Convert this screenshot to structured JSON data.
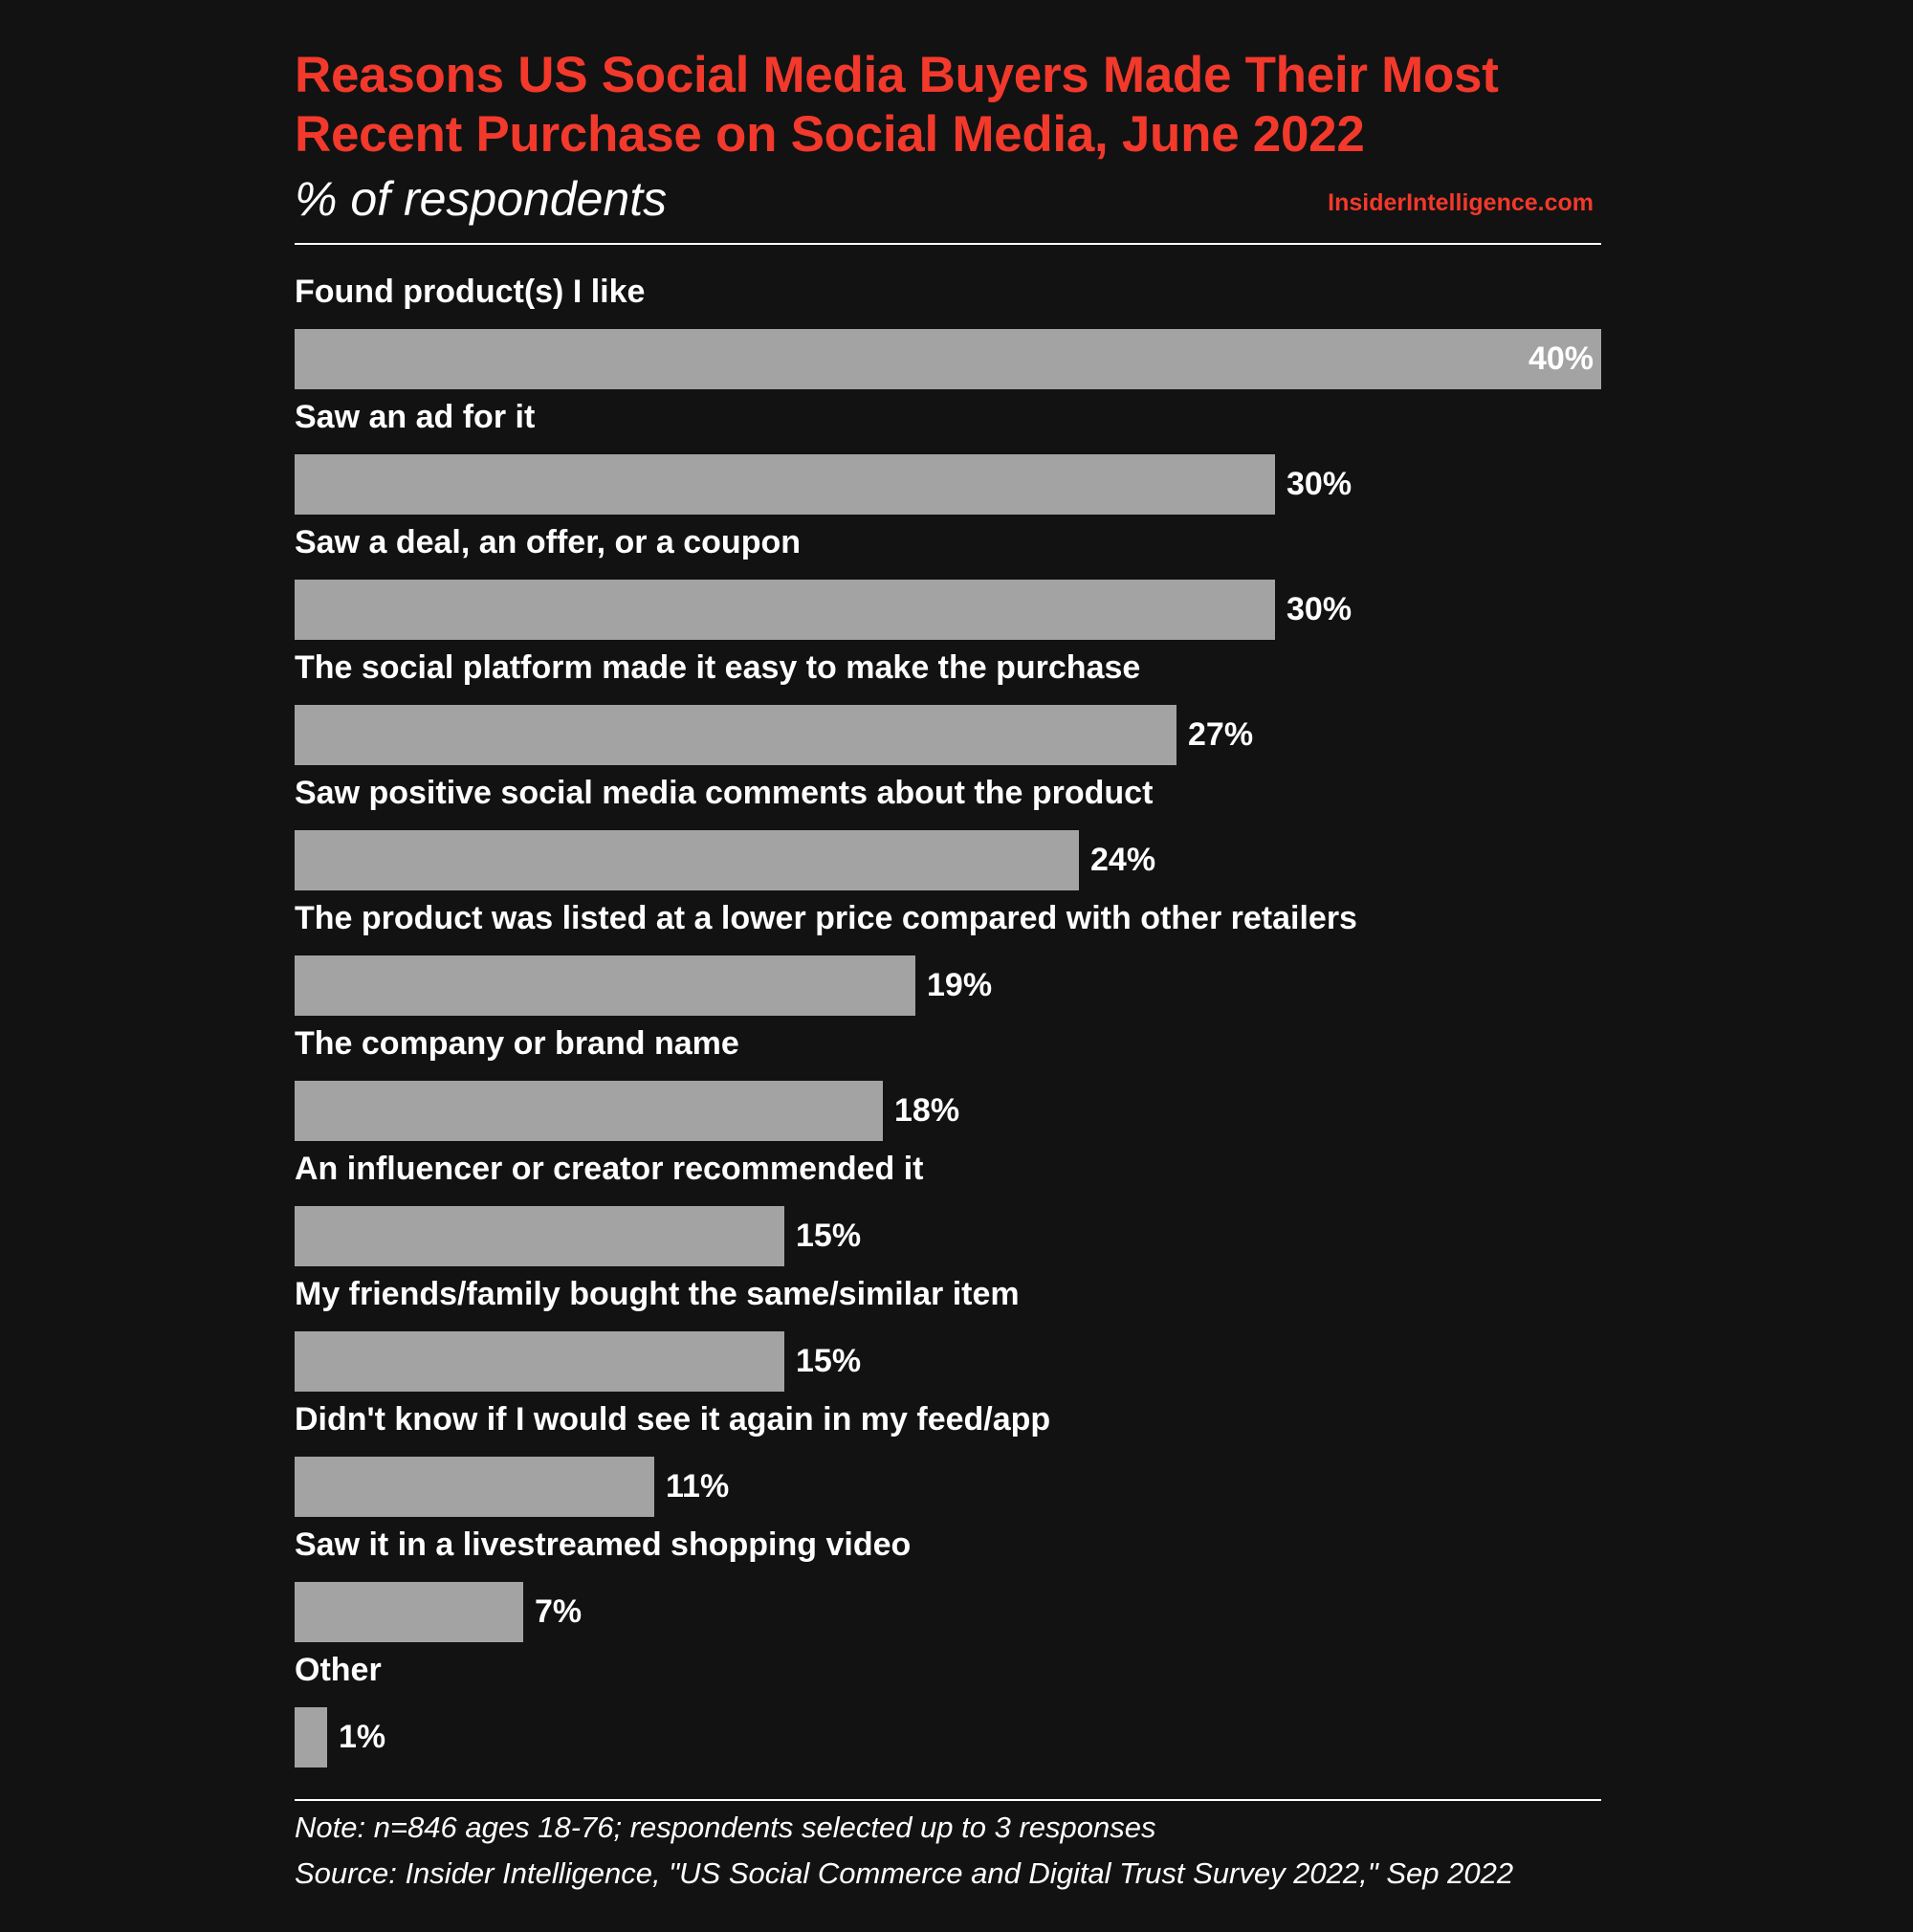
{
  "header": {
    "title_line1": "Reasons US Social Media Buyers Made Their Most",
    "title_line2": "Recent Purchase on Social Media, June 2022",
    "subtitle": "% of respondents",
    "site": "InsiderIntelligence.com"
  },
  "footer": {
    "note": "Note: n=846 ages 18-76; respondents selected up to 3 responses",
    "source": "Source: Insider Intelligence, \"US Social Commerce and Digital Trust Survey 2022,\" Sep 2022"
  },
  "colors": {
    "accent": "#f2392b",
    "bar": "#a3a3a3",
    "background": "#121212",
    "text": "#ffffff"
  },
  "chart_data": {
    "type": "bar",
    "orientation": "horizontal",
    "title": "Reasons US Social Media Buyers Made Their Most Recent Purchase on Social Media, June 2022",
    "subtitle": "% of respondents",
    "categories": [
      "Found product(s) I like",
      "Saw an ad for it",
      "Saw a deal, an offer, or a coupon",
      "The social platform made it easy to make the purchase",
      "Saw positive social media comments about the product",
      "The product was listed at a lower price compared with other retailers",
      "The company or brand name",
      "An influencer or creator recommended it",
      "My friends/family bought the same/similar item",
      "Didn't know if I would see it again in my feed/app",
      "Saw it in a livestreamed shopping video",
      "Other"
    ],
    "values": [
      40,
      30,
      30,
      27,
      24,
      19,
      18,
      15,
      15,
      11,
      7,
      1
    ],
    "value_labels": [
      "40%",
      "30%",
      "30%",
      "27%",
      "24%",
      "19%",
      "18%",
      "15%",
      "15%",
      "11%",
      "7%",
      "1%"
    ],
    "xlim": [
      0,
      40
    ],
    "grid": false,
    "legend": "none"
  }
}
